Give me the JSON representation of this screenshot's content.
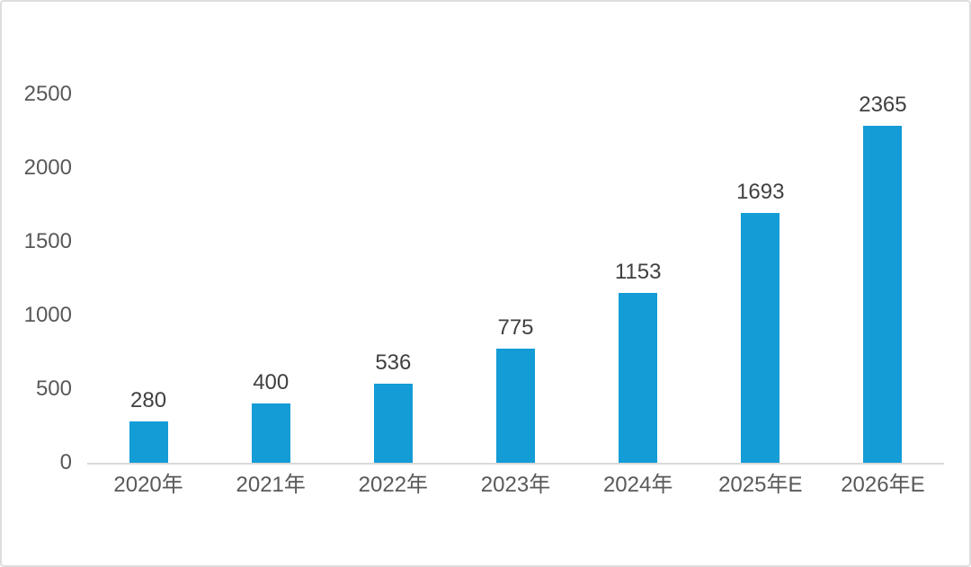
{
  "chart_data": {
    "type": "bar",
    "categories": [
      "2020年",
      "2021年",
      "2022年",
      "2023年",
      "2024年",
      "2025年E",
      "2026年E"
    ],
    "values": [
      280,
      400,
      536,
      775,
      1153,
      1693,
      2365
    ],
    "data_labels": [
      "280",
      "400",
      "536",
      "775",
      "1153",
      "1693",
      "2365"
    ],
    "y_ticks": [
      0,
      500,
      1000,
      1500,
      2000,
      2500
    ],
    "ylim": [
      0,
      2500
    ],
    "title": "",
    "xlabel": "",
    "ylabel": "",
    "grid": false,
    "legend": "none",
    "colors": {
      "bar": "#139CD6",
      "axis_label": "#595959",
      "data_label": "#404040",
      "axis_line": "#D9D9D9",
      "frame_border": "#DEDEDE",
      "background": "#FFFFFF"
    }
  }
}
